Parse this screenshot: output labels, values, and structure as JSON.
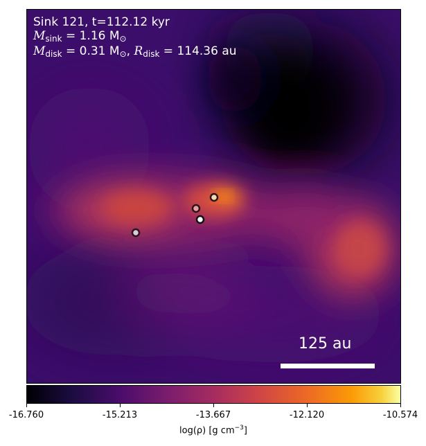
{
  "title_line": "Sink 121, t=112.12 kyr",
  "mass_line": {
    "sink_symbol": "M",
    "sink_sub": "sink",
    "sink_value": " = 1.16 M",
    "sink_sun": "⊙",
    "disk_symbol": "M",
    "disk_sub": "disk",
    "disk_value": " = 0.31 M",
    "disk_sun": "⊙",
    "radius_sep": ", ",
    "radius_symbol": "R",
    "radius_sub": "disk",
    "radius_value": " = 114.36 au"
  },
  "scalebar_label": "125 au",
  "colorbar": {
    "colormap": "inferno",
    "ticks": [
      "-16.760",
      "-15.213",
      "-13.667",
      "-12.120",
      "-10.574"
    ],
    "label_main": "log(ρ) [g cm",
    "label_exp": "−3",
    "label_end": "]"
  },
  "colors": {
    "low": "#000004",
    "mid": "#a52c60",
    "high": "#fcffa4"
  }
}
